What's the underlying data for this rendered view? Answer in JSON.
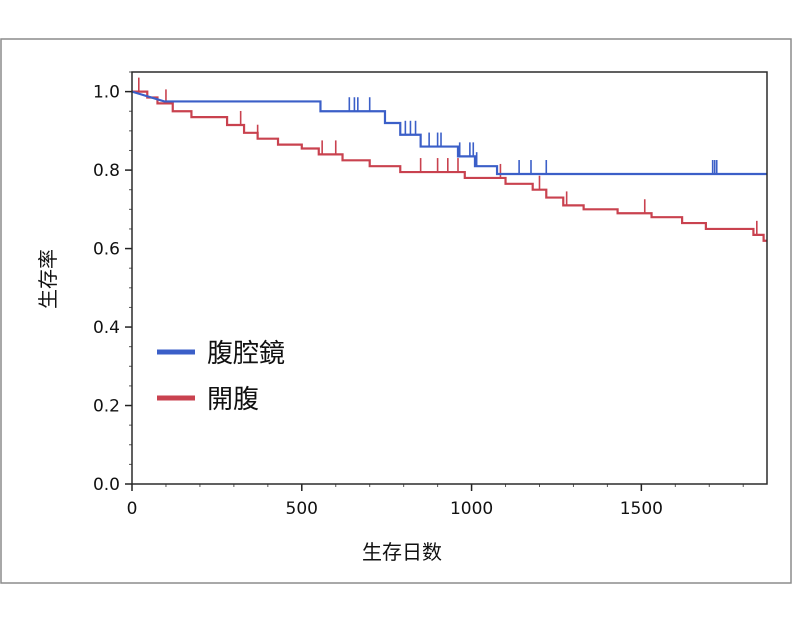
{
  "chart_data": {
    "type": "line",
    "title": "",
    "xlabel": "生存日数",
    "ylabel": "生存率",
    "xlim": [
      0,
      1870
    ],
    "ylim": [
      0,
      1.05
    ],
    "x_ticks": [
      "0",
      "500",
      "1000",
      "1500"
    ],
    "x_tick_values": [
      0,
      500,
      1000,
      1500
    ],
    "y_ticks": [
      "0.0",
      "0.2",
      "0.4",
      "0.6",
      "0.8",
      "1.0"
    ],
    "y_tick_values": [
      0,
      0.2,
      0.4,
      0.6,
      0.8,
      1.0
    ],
    "x_minor_step": 100,
    "y_minor_step": 0.05,
    "grid": false,
    "legend_position": "lower-left",
    "series": [
      {
        "name": "腹腔鏡",
        "color": "#3b5fc8",
        "step_points": [
          [
            0,
            1.0
          ],
          [
            95,
            0.975
          ],
          [
            555,
            0.975
          ],
          [
            555,
            0.95
          ],
          [
            745,
            0.95
          ],
          [
            745,
            0.92
          ],
          [
            790,
            0.92
          ],
          [
            790,
            0.89
          ],
          [
            850,
            0.89
          ],
          [
            850,
            0.86
          ],
          [
            960,
            0.86
          ],
          [
            960,
            0.835
          ],
          [
            1010,
            0.835
          ],
          [
            1010,
            0.81
          ],
          [
            1075,
            0.81
          ],
          [
            1075,
            0.79
          ],
          [
            1870,
            0.79
          ]
        ],
        "censor_times": [
          640,
          655,
          665,
          700,
          805,
          820,
          835,
          875,
          900,
          910,
          965,
          995,
          1005,
          1015,
          1140,
          1175,
          1220,
          1710,
          1716,
          1722
        ]
      },
      {
        "name": "開腹",
        "color": "#c9424f",
        "step_points": [
          [
            0,
            1.0
          ],
          [
            45,
            1.0
          ],
          [
            45,
            0.985
          ],
          [
            75,
            0.985
          ],
          [
            75,
            0.97
          ],
          [
            120,
            0.97
          ],
          [
            120,
            0.95
          ],
          [
            175,
            0.95
          ],
          [
            175,
            0.935
          ],
          [
            280,
            0.935
          ],
          [
            280,
            0.915
          ],
          [
            330,
            0.915
          ],
          [
            330,
            0.895
          ],
          [
            370,
            0.895
          ],
          [
            370,
            0.88
          ],
          [
            430,
            0.88
          ],
          [
            430,
            0.865
          ],
          [
            500,
            0.865
          ],
          [
            500,
            0.855
          ],
          [
            550,
            0.855
          ],
          [
            550,
            0.84
          ],
          [
            620,
            0.84
          ],
          [
            620,
            0.825
          ],
          [
            700,
            0.825
          ],
          [
            700,
            0.81
          ],
          [
            790,
            0.81
          ],
          [
            790,
            0.795
          ],
          [
            980,
            0.795
          ],
          [
            980,
            0.78
          ],
          [
            1100,
            0.78
          ],
          [
            1100,
            0.765
          ],
          [
            1180,
            0.765
          ],
          [
            1180,
            0.75
          ],
          [
            1220,
            0.75
          ],
          [
            1220,
            0.73
          ],
          [
            1270,
            0.73
          ],
          [
            1270,
            0.71
          ],
          [
            1330,
            0.71
          ],
          [
            1330,
            0.7
          ],
          [
            1430,
            0.7
          ],
          [
            1430,
            0.69
          ],
          [
            1530,
            0.69
          ],
          [
            1530,
            0.68
          ],
          [
            1620,
            0.68
          ],
          [
            1620,
            0.665
          ],
          [
            1690,
            0.665
          ],
          [
            1690,
            0.65
          ],
          [
            1830,
            0.65
          ],
          [
            1830,
            0.635
          ],
          [
            1860,
            0.635
          ],
          [
            1860,
            0.62
          ],
          [
            1870,
            0.62
          ]
        ],
        "censor_times": [
          20,
          100,
          320,
          370,
          560,
          600,
          850,
          900,
          930,
          960,
          1085,
          1200,
          1280,
          1510,
          1840
        ]
      }
    ]
  }
}
